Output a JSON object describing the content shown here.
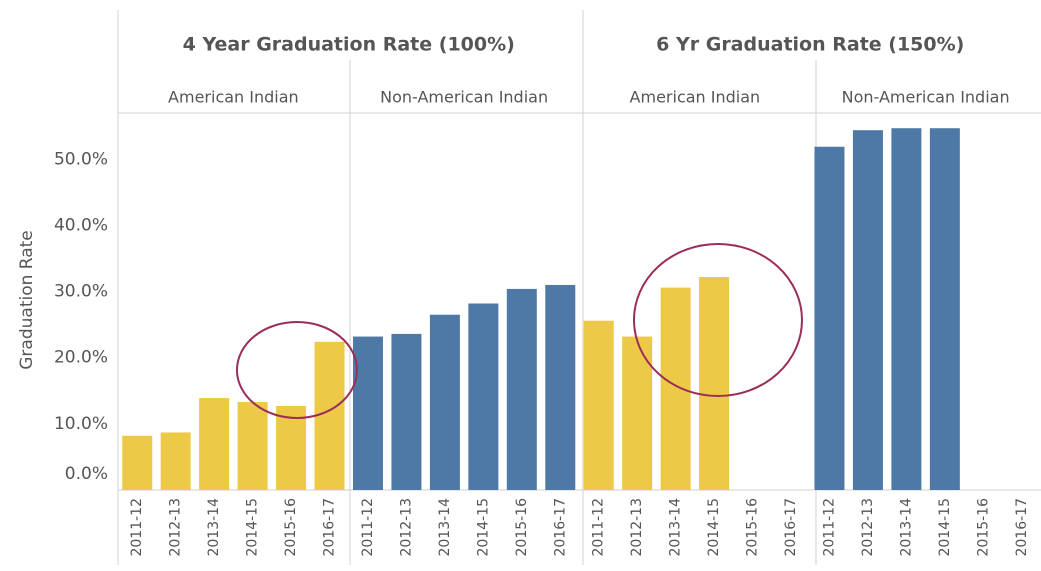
{
  "chart_data": {
    "type": "bar",
    "ylabel": "Graduation Rate",
    "categories": [
      "2011-12",
      "2012-13",
      "2013-14",
      "2014-15",
      "2015-16",
      "2016-17"
    ],
    "panels": [
      {
        "title": "4 Year Graduation Rate (100%)",
        "series": [
          {
            "name": "American Indian",
            "color": "#edc948",
            "values": [
              8.2,
              8.7,
              13.9,
              13.3,
              12.7,
              22.4
            ]
          },
          {
            "name": "Non-American Indian",
            "color": "#4e79a7",
            "values": [
              23.2,
              23.6,
              26.5,
              28.2,
              30.4,
              31.0
            ]
          }
        ]
      },
      {
        "title": "6 Yr Graduation Rate (150%)",
        "series": [
          {
            "name": "American Indian",
            "color": "#edc948",
            "values": [
              25.6,
              23.2,
              30.6,
              32.2,
              null,
              null
            ]
          },
          {
            "name": "Non-American Indian",
            "color": "#4e79a7",
            "values": [
              51.9,
              54.4,
              54.7,
              54.7,
              null,
              null
            ]
          }
        ]
      }
    ],
    "ylim": [
      0,
      57
    ],
    "yticks": [
      {
        "value": 0,
        "label": "0.0%"
      },
      {
        "value": 10,
        "label": "10.0%"
      },
      {
        "value": 20,
        "label": "20.0%"
      },
      {
        "value": 30,
        "label": "30.0%"
      },
      {
        "value": 40,
        "label": "40.0%"
      },
      {
        "value": 50,
        "label": "50.0%"
      }
    ]
  }
}
